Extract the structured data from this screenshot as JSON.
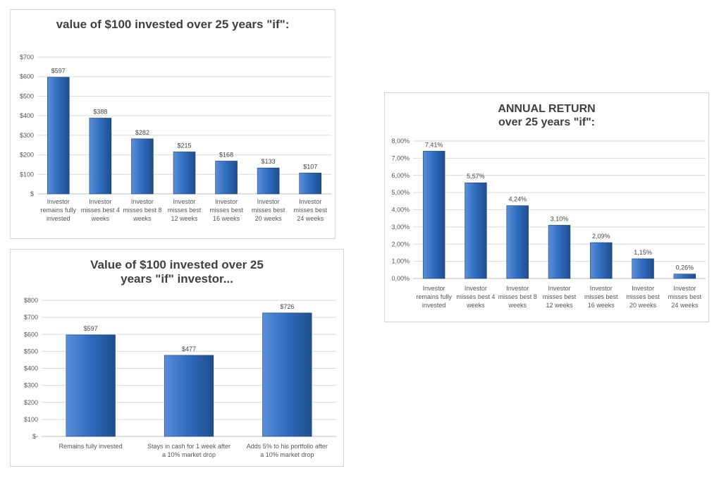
{
  "colors": {
    "bar_light": "#5b8fd6",
    "bar_mid": "#2f6bbf",
    "bar_dark": "#1f4e8c",
    "bar_stroke": "#1c4478",
    "gridline": "#d9d9d9"
  },
  "chart_data": [
    {
      "type": "bar",
      "title_lines": [
        "value of $100 invested over 25 years \"if\":"
      ],
      "categories": [
        [
          "Investor",
          "remains fully",
          "invested"
        ],
        [
          "Investor",
          "misses best 4",
          "weeks"
        ],
        [
          "Investor",
          "misses best 8",
          "weeks"
        ],
        [
          "Investor",
          "misses best",
          "12 weeks"
        ],
        [
          "Investor",
          "misses best",
          "16 weeks"
        ],
        [
          "Investor",
          "misses best",
          "20 weeks"
        ],
        [
          "Investor",
          "misses best",
          "24 weeks"
        ]
      ],
      "values": [
        597,
        388,
        282,
        215,
        168,
        133,
        107
      ],
      "value_labels": [
        "$597",
        "$388",
        "$282",
        "$215",
        "$168",
        "$133",
        "$107"
      ],
      "yticks": [
        "$",
        "$100",
        "$200",
        "$300",
        "$400",
        "$500",
        "$600",
        "$700"
      ],
      "ylim": [
        0,
        700
      ],
      "grid": true,
      "legend": "none"
    },
    {
      "type": "bar",
      "title_lines": [
        "Value of $100 invested over 25",
        "years \"if\" investor..."
      ],
      "categories": [
        [
          "Remains fully invested"
        ],
        [
          "Stays in cash for 1 week after",
          "a 10% market drop"
        ],
        [
          "Adds 5% to his portfolio after",
          "a 10% market drop"
        ]
      ],
      "values": [
        597,
        477,
        726
      ],
      "value_labels": [
        "$597",
        "$477",
        "$726"
      ],
      "yticks": [
        "$-",
        "$100",
        "$200",
        "$300",
        "$400",
        "$500",
        "$600",
        "$700",
        "$800"
      ],
      "ylim": [
        0,
        800
      ],
      "grid": true,
      "legend": "none"
    },
    {
      "type": "bar",
      "title_lines": [
        "ANNUAL RETURN",
        "over 25 years \"if\":"
      ],
      "categories": [
        [
          "Investor",
          "remains fully",
          "invested"
        ],
        [
          "Investor",
          "misses best 4",
          "weeks"
        ],
        [
          "Investor",
          "misses best 8",
          "weeks"
        ],
        [
          "Investor",
          "misses best",
          "12 weeks"
        ],
        [
          "Investor",
          "misses best",
          "16 weeks"
        ],
        [
          "Investor",
          "misses best",
          "20 weeks"
        ],
        [
          "Investor",
          "misses best",
          "24 weeks"
        ]
      ],
      "values": [
        7.41,
        5.57,
        4.24,
        3.1,
        2.09,
        1.15,
        0.26
      ],
      "value_labels": [
        "7,41%",
        "5,57%",
        "4,24%",
        "3,10%",
        "2,09%",
        "1,15%",
        "0,26%"
      ],
      "yticks": [
        "0,00%",
        "1,00%",
        "2,00%",
        "3,00%",
        "4,00%",
        "5,00%",
        "6,00%",
        "7,00%",
        "8,00%"
      ],
      "ylim": [
        0,
        8
      ],
      "grid": true,
      "legend": "none"
    }
  ]
}
